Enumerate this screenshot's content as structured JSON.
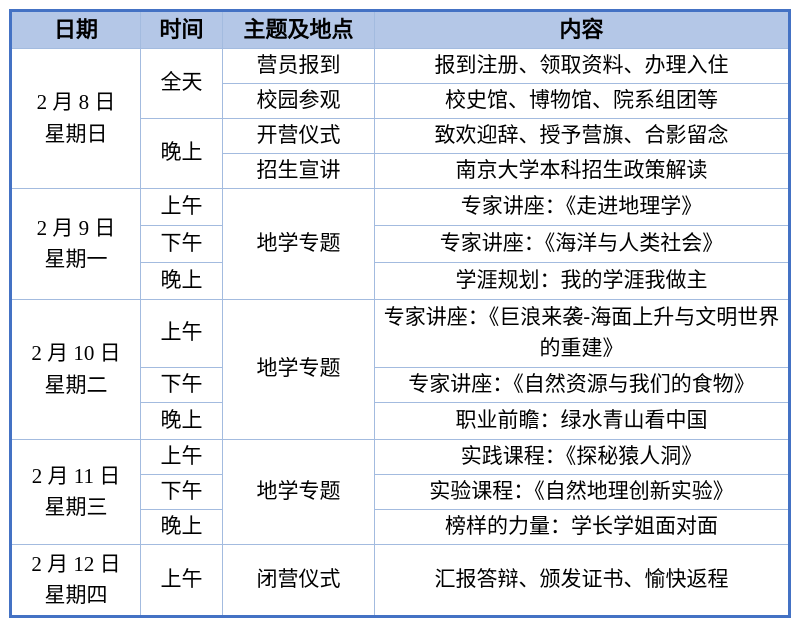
{
  "colors": {
    "outer_border": "#4472C4",
    "grid_line": "#A3BBDF",
    "header_bg": "#B4C7E7",
    "text": "#000000",
    "page_bg": "#FFFFFF"
  },
  "headers": {
    "date": "日期",
    "time": "时间",
    "theme": "主题及地点",
    "content": "内容"
  },
  "days": [
    {
      "date": "2 月 8 日",
      "weekday": "星期日",
      "rows": [
        {
          "time": "全天",
          "theme": "营员报到",
          "content": "报到注册、领取资料、办理入住"
        },
        {
          "theme": "校园参观",
          "content": "校史馆、博物馆、院系组团等"
        },
        {
          "time": "晚上",
          "theme": "开营仪式",
          "content": "致欢迎辞、授予营旗、合影留念"
        },
        {
          "theme": "招生宣讲",
          "content": "南京大学本科招生政策解读"
        }
      ]
    },
    {
      "date": "2 月 9 日",
      "weekday": "星期一",
      "theme": "地学专题",
      "rows": [
        {
          "time": "上午",
          "content": "专家讲座：《走进地理学》"
        },
        {
          "time": "下午",
          "content": "专家讲座：《海洋与人类社会》"
        },
        {
          "time": "晚上",
          "content": "学涯规划：我的学涯我做主"
        }
      ]
    },
    {
      "date": "2 月 10 日",
      "weekday": "星期二",
      "theme": "地学专题",
      "rows": [
        {
          "time": "上午",
          "content": "专家讲座：《巨浪来袭-海面上升与文明世界的重建》"
        },
        {
          "time": "下午",
          "content": "专家讲座：《自然资源与我们的食物》"
        },
        {
          "time": "晚上",
          "content": "职业前瞻：绿水青山看中国"
        }
      ]
    },
    {
      "date": "2 月 11 日",
      "weekday": "星期三",
      "theme": "地学专题",
      "rows": [
        {
          "time": "上午",
          "content": "实践课程：《探秘猿人洞》"
        },
        {
          "time": "下午",
          "content": "实验课程：《自然地理创新实验》"
        },
        {
          "time": "晚上",
          "content": "榜样的力量：学长学姐面对面"
        }
      ]
    },
    {
      "date": "2 月 12 日",
      "weekday": "星期四",
      "rows": [
        {
          "time": "上午",
          "theme": "闭营仪式",
          "content": "汇报答辩、颁发证书、愉快返程"
        }
      ]
    }
  ]
}
